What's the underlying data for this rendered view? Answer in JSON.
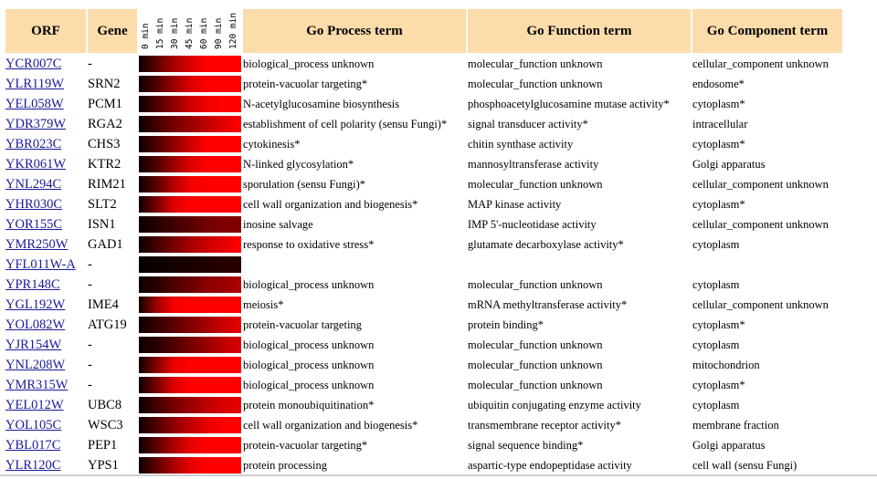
{
  "headers": {
    "orf": "ORF",
    "gene": "Gene",
    "process": "Go Process term",
    "function": "Go Function term",
    "component": "Go Component term"
  },
  "time_labels": [
    "0 min",
    "15 min",
    "30 min",
    "45 min",
    "60 min",
    "90 min",
    "120 min"
  ],
  "colors": {
    "header_bg": "#fddcab",
    "link": "#1a1a9a",
    "heat_low": "#000000",
    "heat_high": "#ff0000"
  },
  "rows": [
    {
      "orf": "YCR007C",
      "gene": "-",
      "process": "biological_process unknown",
      "function": "molecular_function unknown",
      "component": "cellular_component unknown",
      "expression": [
        0.05,
        0.35,
        0.65,
        0.85,
        1,
        1,
        1
      ]
    },
    {
      "orf": "YLR119W",
      "gene": "SRN2",
      "process": "protein-vacuolar targeting*",
      "function": "molecular_function unknown",
      "component": "endosome*",
      "expression": [
        0.05,
        0.3,
        0.6,
        0.85,
        1,
        1,
        1
      ]
    },
    {
      "orf": "YEL058W",
      "gene": "PCM1",
      "process": "N-acetylglucosamine biosynthesis",
      "function": "phosphoacetylglucosamine mutase activity*",
      "component": "cytoplasm*",
      "expression": [
        0.05,
        0.3,
        0.55,
        0.8,
        0.95,
        1,
        1
      ]
    },
    {
      "orf": "YDR379W",
      "gene": "RGA2",
      "process": "establishment of cell polarity (sensu Fungi)*",
      "function": "signal transducer activity*",
      "component": "intracellular",
      "expression": [
        0.05,
        0.25,
        0.45,
        0.6,
        0.75,
        0.9,
        1
      ]
    },
    {
      "orf": "YBR023C",
      "gene": "CHS3",
      "process": "cytokinesis*",
      "function": "chitin synthase activity",
      "component": "cytoplasm*",
      "expression": [
        0.05,
        0.3,
        0.55,
        0.8,
        1,
        1,
        1
      ]
    },
    {
      "orf": "YKR061W",
      "gene": "KTR2",
      "process": "N-linked glycosylation*",
      "function": "mannosyltransferase activity",
      "component": "Golgi apparatus",
      "expression": [
        0.05,
        0.3,
        0.6,
        0.85,
        1,
        1,
        1
      ]
    },
    {
      "orf": "YNL294C",
      "gene": "RIM21",
      "process": "sporulation (sensu Fungi)*",
      "function": "molecular_function unknown",
      "component": "cellular_component unknown",
      "expression": [
        0.05,
        0.35,
        0.7,
        0.95,
        1,
        1,
        1
      ]
    },
    {
      "orf": "YHR030C",
      "gene": "SLT2",
      "process": "cell wall organization and biogenesis*",
      "function": "MAP kinase activity",
      "component": "cytoplasm*",
      "expression": [
        0.05,
        0.45,
        0.85,
        1,
        1,
        1,
        1
      ]
    },
    {
      "orf": "YOR155C",
      "gene": "ISN1",
      "process": "inosine salvage",
      "function": "IMP 5'-nucleotidase activity",
      "component": "cellular_component unknown",
      "expression": [
        0.05,
        0.15,
        0.25,
        0.35,
        0.45,
        0.5,
        0.5
      ]
    },
    {
      "orf": "YMR250W",
      "gene": "GAD1",
      "process": "response to oxidative stress*",
      "function": "glutamate decarboxylase activity*",
      "component": "cytoplasm",
      "expression": [
        0.05,
        0.25,
        0.45,
        0.65,
        0.8,
        0.9,
        1
      ]
    },
    {
      "orf": "YFL011W-A",
      "gene": "-",
      "process": "",
      "function": "",
      "component": "",
      "expression": [
        0.02,
        0.05,
        0.08,
        0.1,
        0.12,
        0.15,
        0.15
      ]
    },
    {
      "orf": "YPR148C",
      "gene": "-",
      "process": "biological_process unknown",
      "function": "molecular_function unknown",
      "component": "cytoplasm",
      "expression": [
        0.05,
        0.15,
        0.3,
        0.4,
        0.55,
        0.6,
        0.7
      ]
    },
    {
      "orf": "YGL192W",
      "gene": "IME4",
      "process": "meiosis*",
      "function": "mRNA methyltransferase activity*",
      "component": "cellular_component unknown",
      "expression": [
        0.05,
        0.6,
        0.95,
        1,
        1,
        1,
        1
      ]
    },
    {
      "orf": "YOL082W",
      "gene": "ATG19",
      "process": "protein-vacuolar targeting",
      "function": "protein binding*",
      "component": "cytoplasm*",
      "expression": [
        0.05,
        0.2,
        0.35,
        0.5,
        0.65,
        0.8,
        0.9
      ]
    },
    {
      "orf": "YJR154W",
      "gene": "-",
      "process": "biological_process unknown",
      "function": "molecular_function unknown",
      "component": "cytoplasm",
      "expression": [
        0.05,
        0.15,
        0.3,
        0.45,
        0.6,
        0.75,
        0.85
      ]
    },
    {
      "orf": "YNL208W",
      "gene": "-",
      "process": "biological_process unknown",
      "function": "molecular_function unknown",
      "component": "mitochondrion",
      "expression": [
        0.05,
        0.5,
        0.9,
        1,
        1,
        1,
        1
      ]
    },
    {
      "orf": "YMR315W",
      "gene": "-",
      "process": "biological_process unknown",
      "function": "molecular_function unknown",
      "component": "cytoplasm*",
      "expression": [
        0.05,
        0.45,
        0.85,
        1,
        1,
        1,
        1
      ]
    },
    {
      "orf": "YEL012W",
      "gene": "UBC8",
      "process": "protein monoubiquitination*",
      "function": "ubiquitin conjugating enzyme activity",
      "component": "cytoplasm",
      "expression": [
        0.05,
        0.25,
        0.45,
        0.6,
        0.75,
        0.85,
        0.9
      ]
    },
    {
      "orf": "YOL105C",
      "gene": "WSC3",
      "process": "cell wall organization and biogenesis*",
      "function": "transmembrane receptor activity*",
      "component": "membrane fraction",
      "expression": [
        0.05,
        0.3,
        0.55,
        0.75,
        0.9,
        1,
        1
      ]
    },
    {
      "orf": "YBL017C",
      "gene": "PEP1",
      "process": "protein-vacuolar targeting*",
      "function": "signal sequence binding*",
      "component": "Golgi apparatus",
      "expression": [
        0.05,
        0.35,
        0.65,
        0.9,
        1,
        1,
        1
      ]
    },
    {
      "orf": "YLR120C",
      "gene": "YPS1",
      "process": "protein processing",
      "function": "aspartic-type endopeptidase activity",
      "component": "cell wall (sensu Fungi)",
      "expression": [
        0.05,
        0.35,
        0.65,
        0.9,
        1,
        1,
        1
      ]
    }
  ]
}
